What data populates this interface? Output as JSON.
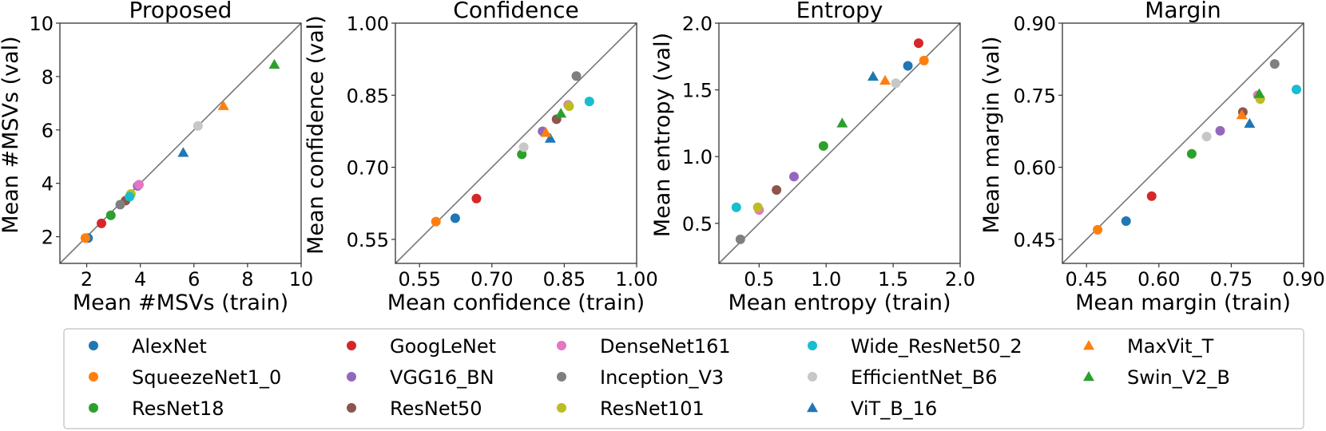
{
  "models": [
    {
      "name": "AlexNet",
      "color": "#1f77b4",
      "marker": "circle"
    },
    {
      "name": "SqueezeNet1_0",
      "color": "#ff7f0e",
      "marker": "circle"
    },
    {
      "name": "ResNet18",
      "color": "#2ca02c",
      "marker": "circle"
    },
    {
      "name": "GoogLeNet",
      "color": "#d62728",
      "marker": "circle"
    },
    {
      "name": "VGG16_BN",
      "color": "#9467bd",
      "marker": "circle"
    },
    {
      "name": "ResNet50",
      "color": "#8c564b",
      "marker": "circle"
    },
    {
      "name": "DenseNet161",
      "color": "#e377c2",
      "marker": "circle"
    },
    {
      "name": "Inception_V3",
      "color": "#7f7f7f",
      "marker": "circle"
    },
    {
      "name": "ResNet101",
      "color": "#bcbd22",
      "marker": "circle"
    },
    {
      "name": "Wide_ResNet50_2",
      "color": "#17becf",
      "marker": "circle"
    },
    {
      "name": "EfficientNet_B6",
      "color": "#c7c7c7",
      "marker": "circle"
    },
    {
      "name": "ViT_B_16",
      "color": "#1f77b4",
      "marker": "triangle"
    },
    {
      "name": "MaxVit_T",
      "color": "#ff7f0e",
      "marker": "triangle"
    },
    {
      "name": "Swin_V2_B",
      "color": "#2ca02c",
      "marker": "triangle"
    }
  ],
  "chart_data": [
    {
      "type": "scatter",
      "title": "Proposed",
      "xlabel": "Mean #MSVs (train)",
      "ylabel": "Mean #MSVs (val)",
      "xlim": [
        1,
        10
      ],
      "ylim": [
        1,
        10
      ],
      "xticks": [
        2,
        4,
        6,
        8,
        10
      ],
      "yticks": [
        2,
        4,
        6,
        8,
        10
      ],
      "tick_labels_x": [
        "2",
        "4",
        "6",
        "8",
        "10"
      ],
      "tick_labels_y": [
        "2",
        "4",
        "6",
        "8",
        "10"
      ],
      "diagonal": true,
      "points": [
        {
          "model": "AlexNet",
          "x": 2.05,
          "y": 1.95
        },
        {
          "model": "SqueezeNet1_0",
          "x": 1.95,
          "y": 1.95
        },
        {
          "model": "ResNet18",
          "x": 2.9,
          "y": 2.8
        },
        {
          "model": "GoogLeNet",
          "x": 2.55,
          "y": 2.5
        },
        {
          "model": "VGG16_BN",
          "x": 3.9,
          "y": 3.9
        },
        {
          "model": "ResNet50",
          "x": 3.45,
          "y": 3.35
        },
        {
          "model": "DenseNet161",
          "x": 3.95,
          "y": 3.95
        },
        {
          "model": "Inception_V3",
          "x": 3.25,
          "y": 3.2
        },
        {
          "model": "ResNet101",
          "x": 3.65,
          "y": 3.6
        },
        {
          "model": "Wide_ResNet50_2",
          "x": 3.6,
          "y": 3.5
        },
        {
          "model": "EfficientNet_B6",
          "x": 6.15,
          "y": 6.15
        },
        {
          "model": "ViT_B_16",
          "x": 5.6,
          "y": 5.15
        },
        {
          "model": "MaxVit_T",
          "x": 7.1,
          "y": 6.9
        },
        {
          "model": "Swin_V2_B",
          "x": 9.0,
          "y": 8.45
        }
      ]
    },
    {
      "type": "scatter",
      "title": "Confidence",
      "xlabel": "Mean confidence (train)",
      "ylabel": "Mean confidence (val)",
      "xlim": [
        0.5,
        1.0
      ],
      "ylim": [
        0.5,
        1.0
      ],
      "xticks": [
        0.55,
        0.7,
        0.85,
        1.0
      ],
      "yticks": [
        0.55,
        0.7,
        0.85,
        1.0
      ],
      "tick_labels_x": [
        "0.55",
        "0.70",
        "0.85",
        "1.00"
      ],
      "tick_labels_y": [
        "0.55",
        "0.70",
        "0.85",
        "1.00"
      ],
      "diagonal": true,
      "points": [
        {
          "model": "AlexNet",
          "x": 0.624,
          "y": 0.594
        },
        {
          "model": "SqueezeNet1_0",
          "x": 0.584,
          "y": 0.587
        },
        {
          "model": "ResNet18",
          "x": 0.762,
          "y": 0.727
        },
        {
          "model": "GoogLeNet",
          "x": 0.668,
          "y": 0.635
        },
        {
          "model": "VGG16_BN",
          "x": 0.805,
          "y": 0.775
        },
        {
          "model": "ResNet50",
          "x": 0.834,
          "y": 0.8
        },
        {
          "model": "DenseNet161",
          "x": 0.858,
          "y": 0.83
        },
        {
          "model": "Inception_V3",
          "x": 0.875,
          "y": 0.89
        },
        {
          "model": "ResNet101",
          "x": 0.86,
          "y": 0.827
        },
        {
          "model": "Wide_ResNet50_2",
          "x": 0.902,
          "y": 0.837
        },
        {
          "model": "EfficientNet_B6",
          "x": 0.766,
          "y": 0.742
        },
        {
          "model": "ViT_B_16",
          "x": 0.821,
          "y": 0.76
        },
        {
          "model": "MaxVit_T",
          "x": 0.812,
          "y": 0.772
        },
        {
          "model": "Swin_V2_B",
          "x": 0.843,
          "y": 0.812
        }
      ]
    },
    {
      "type": "scatter",
      "title": "Entropy",
      "xlabel": "Mean entropy (train)",
      "ylabel": "Mean entropy (val)",
      "xlim": [
        0.2,
        2.0
      ],
      "ylim": [
        0.2,
        2.0
      ],
      "xticks": [
        0.5,
        1.0,
        1.5,
        2.0
      ],
      "yticks": [
        0.5,
        1.0,
        1.5,
        2.0
      ],
      "tick_labels_x": [
        "0.5",
        "1.0",
        "1.5",
        "2.0"
      ],
      "tick_labels_y": [
        "0.5",
        "1.0",
        "1.5",
        "2.0"
      ],
      "diagonal": true,
      "points": [
        {
          "model": "AlexNet",
          "x": 1.61,
          "y": 1.68
        },
        {
          "model": "SqueezeNet1_0",
          "x": 1.73,
          "y": 1.72
        },
        {
          "model": "ResNet18",
          "x": 0.98,
          "y": 1.08
        },
        {
          "model": "GoogLeNet",
          "x": 1.69,
          "y": 1.85
        },
        {
          "model": "VGG16_BN",
          "x": 0.76,
          "y": 0.85
        },
        {
          "model": "ResNet50",
          "x": 0.63,
          "y": 0.75
        },
        {
          "model": "DenseNet161",
          "x": 0.5,
          "y": 0.6
        },
        {
          "model": "Inception_V3",
          "x": 0.36,
          "y": 0.38
        },
        {
          "model": "ResNet101",
          "x": 0.49,
          "y": 0.62
        },
        {
          "model": "Wide_ResNet50_2",
          "x": 0.33,
          "y": 0.62
        },
        {
          "model": "EfficientNet_B6",
          "x": 1.52,
          "y": 1.55
        },
        {
          "model": "ViT_B_16",
          "x": 1.35,
          "y": 1.6
        },
        {
          "model": "MaxVit_T",
          "x": 1.44,
          "y": 1.57
        },
        {
          "model": "Swin_V2_B",
          "x": 1.12,
          "y": 1.25
        }
      ]
    },
    {
      "type": "scatter",
      "title": "Margin",
      "xlabel": "Mean margin (train)",
      "ylabel": "Mean margin (val)",
      "xlim": [
        0.4,
        0.9
      ],
      "ylim": [
        0.4,
        0.9
      ],
      "xticks": [
        0.45,
        0.6,
        0.75,
        0.9
      ],
      "yticks": [
        0.45,
        0.6,
        0.75,
        0.9
      ],
      "tick_labels_x": [
        "0.45",
        "0.60",
        "0.75",
        "0.90"
      ],
      "tick_labels_y": [
        "0.45",
        "0.60",
        "0.75",
        "0.90"
      ],
      "diagonal": true,
      "points": [
        {
          "model": "AlexNet",
          "x": 0.532,
          "y": 0.488
        },
        {
          "model": "SqueezeNet1_0",
          "x": 0.473,
          "y": 0.47
        },
        {
          "model": "ResNet18",
          "x": 0.668,
          "y": 0.628
        },
        {
          "model": "GoogLeNet",
          "x": 0.585,
          "y": 0.54
        },
        {
          "model": "VGG16_BN",
          "x": 0.727,
          "y": 0.676
        },
        {
          "model": "ResNet50",
          "x": 0.774,
          "y": 0.715
        },
        {
          "model": "DenseNet161",
          "x": 0.805,
          "y": 0.75
        },
        {
          "model": "Inception_V3",
          "x": 0.84,
          "y": 0.815
        },
        {
          "model": "ResNet101",
          "x": 0.81,
          "y": 0.742
        },
        {
          "model": "Wide_ResNet50_2",
          "x": 0.885,
          "y": 0.762
        },
        {
          "model": "EfficientNet_B6",
          "x": 0.699,
          "y": 0.664
        },
        {
          "model": "ViT_B_16",
          "x": 0.788,
          "y": 0.691
        },
        {
          "model": "MaxVit_T",
          "x": 0.772,
          "y": 0.709
        },
        {
          "model": "Swin_V2_B",
          "x": 0.808,
          "y": 0.753
        }
      ]
    }
  ]
}
